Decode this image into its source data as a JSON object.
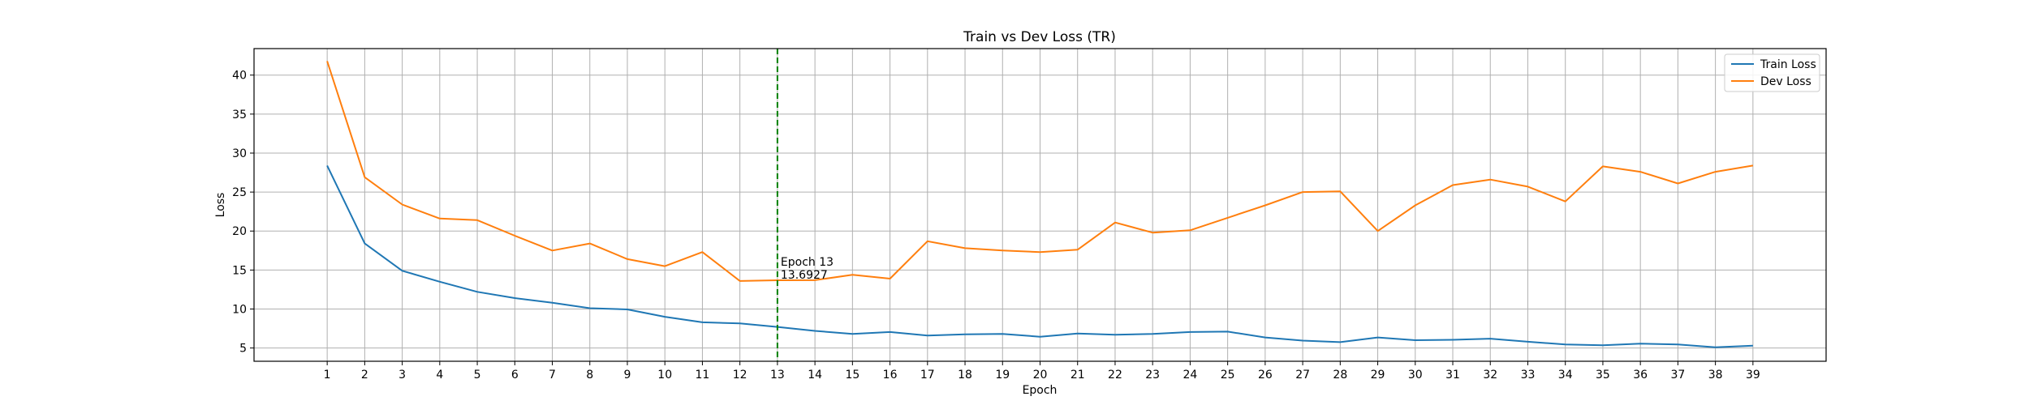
{
  "chart_data": {
    "type": "line",
    "title": "Train vs Dev Loss (TR)",
    "xlabel": "Epoch",
    "ylabel": "Loss",
    "xlim": [
      -0.95,
      40.95
    ],
    "ylim": [
      3.3,
      43.4
    ],
    "x": [
      1,
      2,
      3,
      4,
      5,
      6,
      7,
      8,
      9,
      10,
      11,
      12,
      13,
      14,
      15,
      16,
      17,
      18,
      19,
      20,
      21,
      22,
      23,
      24,
      25,
      26,
      27,
      28,
      29,
      30,
      31,
      32,
      33,
      34,
      35,
      36,
      37,
      38,
      39
    ],
    "x_ticks": [
      1,
      2,
      3,
      4,
      5,
      6,
      7,
      8,
      9,
      10,
      11,
      12,
      13,
      14,
      15,
      16,
      17,
      18,
      19,
      20,
      21,
      22,
      23,
      24,
      25,
      26,
      27,
      28,
      29,
      30,
      31,
      32,
      33,
      34,
      35,
      36,
      37,
      38,
      39
    ],
    "y_ticks": [
      5,
      10,
      15,
      20,
      25,
      30,
      35,
      40
    ],
    "grid": true,
    "legend_position": "upper-right",
    "series": [
      {
        "name": "Train Loss",
        "color": "#1f77b4",
        "values": [
          28.4,
          18.4,
          14.9,
          13.5,
          12.2,
          11.4,
          10.8,
          10.1,
          9.95,
          9.0,
          8.3,
          8.15,
          7.7,
          7.2,
          6.8,
          7.05,
          6.6,
          6.75,
          6.8,
          6.45,
          6.85,
          6.7,
          6.8,
          7.05,
          7.1,
          6.35,
          5.95,
          5.75,
          6.35,
          6.0,
          6.05,
          6.2,
          5.8,
          5.45,
          5.35,
          5.55,
          5.45,
          5.1,
          5.3
        ]
      },
      {
        "name": "Dev Loss",
        "color": "#ff7f0e",
        "values": [
          41.8,
          26.9,
          23.4,
          21.6,
          21.4,
          19.4,
          17.5,
          18.4,
          16.4,
          15.5,
          17.3,
          13.6,
          13.6927,
          13.7,
          14.4,
          13.9,
          18.7,
          17.8,
          17.5,
          17.3,
          17.6,
          21.1,
          19.8,
          20.1,
          21.7,
          23.3,
          25.0,
          25.1,
          20.0,
          23.3,
          25.9,
          26.6,
          25.7,
          23.8,
          28.3,
          27.6,
          26.1,
          27.6,
          28.4
        ]
      }
    ],
    "annotation": {
      "epoch": 13,
      "value": 13.6927,
      "line_color": "#008000",
      "line_style": "dashed",
      "text_line1": "Epoch 13",
      "text_line2": "13.6927"
    }
  }
}
